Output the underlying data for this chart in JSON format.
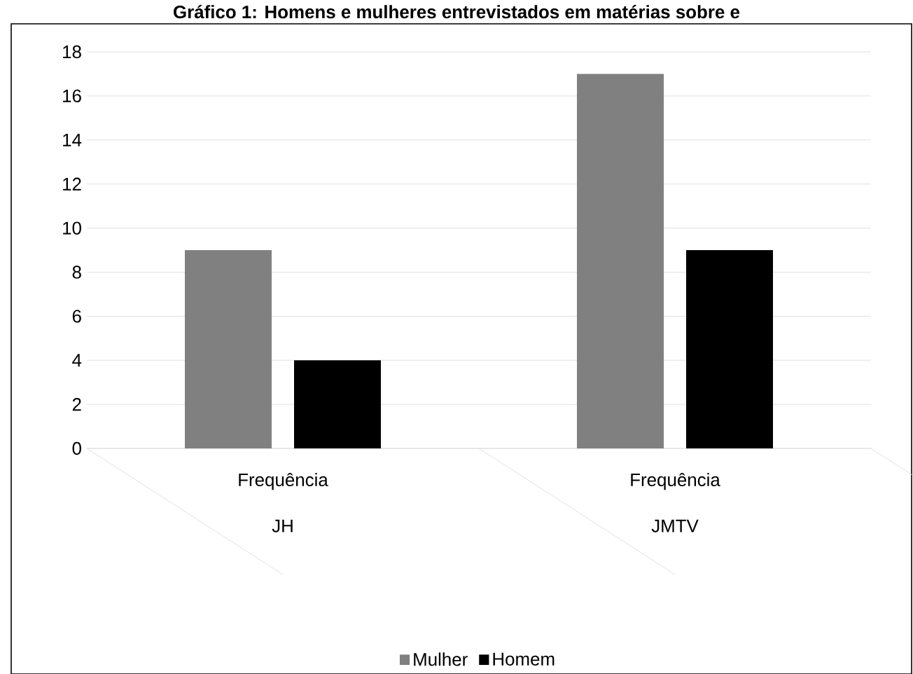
{
  "chart_data": {
    "type": "bar",
    "title": "Gráfico 1: Homens e mulheres entrevistados em matérias sobre e",
    "categories": [
      "JH",
      "JMTV"
    ],
    "annotations": [
      "Frequência",
      "Frequência"
    ],
    "series": [
      {
        "name": "Mulher",
        "color": "#808080",
        "values": [
          9,
          17
        ]
      },
      {
        "name": "Homem",
        "color": "#000000",
        "values": [
          4,
          9
        ]
      }
    ],
    "ylim": [
      0,
      18
    ],
    "yticks": [
      0,
      2,
      4,
      6,
      8,
      10,
      12,
      14,
      16,
      18
    ],
    "grid": "y",
    "legend": "bottom"
  }
}
